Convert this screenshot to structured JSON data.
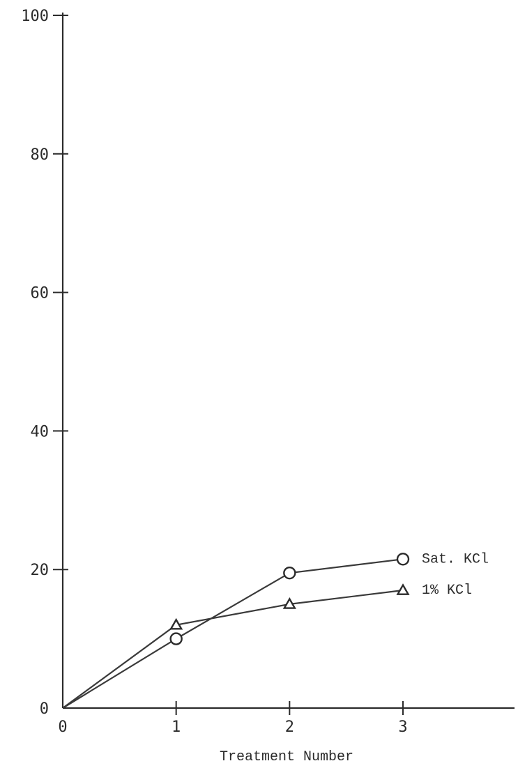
{
  "chart_data": {
    "type": "line",
    "title": "",
    "xlabel": "Treatment Number",
    "ylabel": "",
    "x": [
      0,
      1,
      2,
      3
    ],
    "xlim": [
      0,
      3.95
    ],
    "ylim": [
      0,
      100
    ],
    "x_ticks": [
      "0",
      "1",
      "2",
      "3"
    ],
    "y_ticks": [
      "0",
      "20",
      "40",
      "60",
      "80",
      "100"
    ],
    "grid": false,
    "series": [
      {
        "name": "Sat. KCl",
        "marker": "circle",
        "values": [
          0,
          10,
          19.5,
          21.5
        ],
        "label": "Sat. KCl"
      },
      {
        "name": "1% KCl",
        "marker": "triangle",
        "values": [
          0,
          12,
          15,
          17
        ],
        "label": "1% KCl"
      }
    ]
  }
}
